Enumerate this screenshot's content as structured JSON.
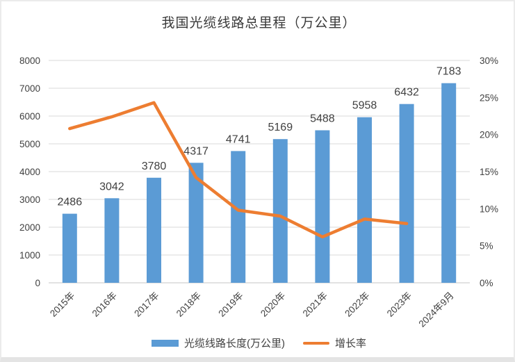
{
  "chart_data": {
    "type": "bar+line combo",
    "title": "我国光缆线路总里程（万公里）",
    "categories": [
      "2015年",
      "2016年",
      "2017年",
      "2018年",
      "2019年",
      "2020年",
      "2021年",
      "2022年",
      "2023年",
      "2024年9月"
    ],
    "series": [
      {
        "name": "光缆线路长度(万公里)",
        "type": "bar",
        "axis": "left",
        "color": "#5B9BD5",
        "values": [
          2486,
          3042,
          3780,
          4317,
          4741,
          5169,
          5488,
          5958,
          6432,
          7183
        ]
      },
      {
        "name": "增长率",
        "type": "line",
        "axis": "right",
        "color": "#ED7D31",
        "unit": "%",
        "values": [
          20.8,
          22.4,
          24.3,
          14.2,
          9.8,
          9.0,
          6.2,
          8.6,
          8.0,
          null
        ]
      }
    ],
    "data_labels_visible": true,
    "left_axis": {
      "min": 0,
      "max": 8000,
      "step": 1000,
      "tick_labels": [
        "0",
        "1000",
        "2000",
        "3000",
        "4000",
        "5000",
        "6000",
        "7000",
        "8000"
      ]
    },
    "right_axis": {
      "min": 0,
      "max": 30,
      "step": 5,
      "tick_labels": [
        "0%",
        "5%",
        "10%",
        "15%",
        "20%",
        "25%",
        "30%"
      ]
    },
    "grid": true,
    "gridline_color": "#d9d9d9",
    "axis_line_color": "#c6c6c6",
    "text_color": "#404040",
    "legend_position": "bottom"
  }
}
